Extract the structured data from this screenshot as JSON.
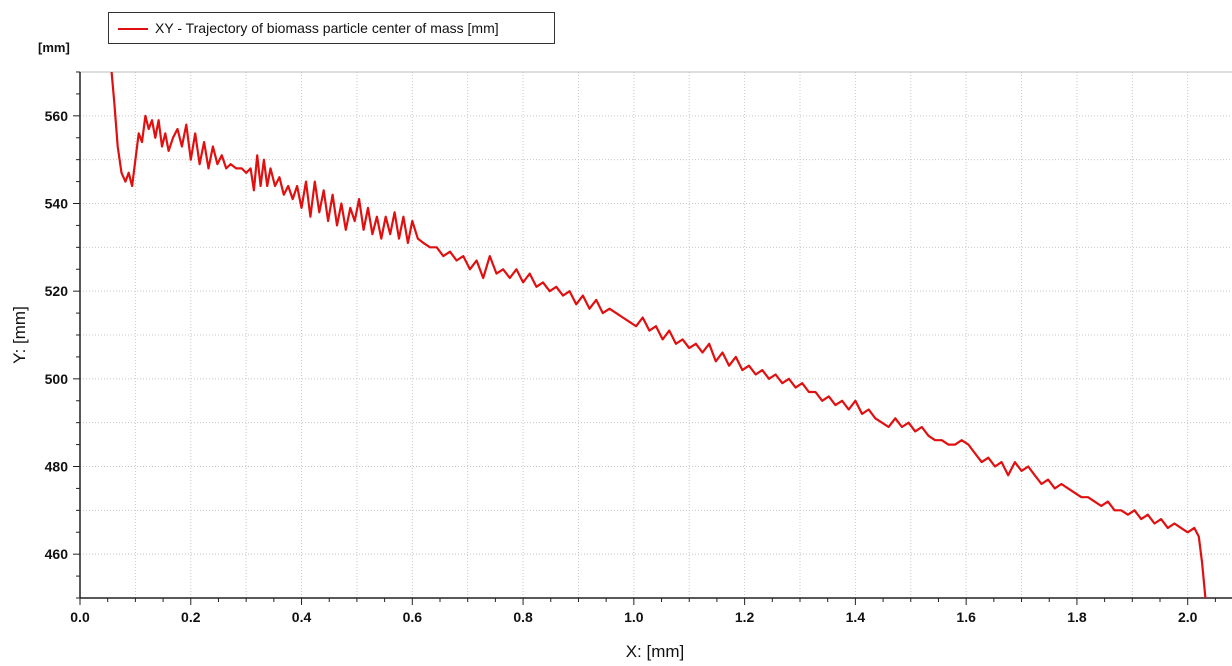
{
  "chart_data": {
    "type": "line",
    "title": "",
    "xlabel": "X: [mm]",
    "ylabel": "Y: [mm]",
    "y_unit_label": "[mm]",
    "xlim": [
      0.0,
      2.08
    ],
    "ylim": [
      450,
      570
    ],
    "x_ticks": [
      "0.0",
      "0.2",
      "0.4",
      "0.6",
      "0.8",
      "1.0",
      "1.2",
      "1.4",
      "1.6",
      "1.8",
      "2.0"
    ],
    "y_ticks": [
      "460",
      "480",
      "500",
      "520",
      "540",
      "560"
    ],
    "grid": true,
    "legend_position": "top-left",
    "series": [
      {
        "name": "XY - Trajectory of biomass particle center of mass [mm]",
        "color": "#e01010",
        "points": [
          [
            0.057,
            570
          ],
          [
            0.062,
            563
          ],
          [
            0.068,
            553
          ],
          [
            0.075,
            547
          ],
          [
            0.082,
            545
          ],
          [
            0.088,
            547
          ],
          [
            0.094,
            544
          ],
          [
            0.1,
            550
          ],
          [
            0.106,
            556
          ],
          [
            0.112,
            554
          ],
          [
            0.118,
            560
          ],
          [
            0.124,
            557
          ],
          [
            0.13,
            559
          ],
          [
            0.136,
            555
          ],
          [
            0.142,
            559
          ],
          [
            0.148,
            553
          ],
          [
            0.154,
            556
          ],
          [
            0.16,
            552
          ],
          [
            0.168,
            555
          ],
          [
            0.176,
            557
          ],
          [
            0.184,
            553
          ],
          [
            0.192,
            558
          ],
          [
            0.2,
            550
          ],
          [
            0.208,
            556
          ],
          [
            0.216,
            549
          ],
          [
            0.224,
            554
          ],
          [
            0.232,
            548
          ],
          [
            0.24,
            553
          ],
          [
            0.248,
            549
          ],
          [
            0.256,
            551
          ],
          [
            0.264,
            548
          ],
          [
            0.272,
            549
          ],
          [
            0.282,
            548
          ],
          [
            0.292,
            548
          ],
          [
            0.3,
            547
          ],
          [
            0.308,
            548
          ],
          [
            0.314,
            543
          ],
          [
            0.32,
            551
          ],
          [
            0.326,
            544
          ],
          [
            0.332,
            550
          ],
          [
            0.338,
            544
          ],
          [
            0.344,
            548
          ],
          [
            0.352,
            544
          ],
          [
            0.36,
            546
          ],
          [
            0.368,
            542
          ],
          [
            0.376,
            544
          ],
          [
            0.384,
            541
          ],
          [
            0.392,
            544
          ],
          [
            0.4,
            539
          ],
          [
            0.408,
            545
          ],
          [
            0.416,
            537
          ],
          [
            0.424,
            545
          ],
          [
            0.432,
            538
          ],
          [
            0.44,
            543
          ],
          [
            0.448,
            536
          ],
          [
            0.456,
            542
          ],
          [
            0.464,
            535
          ],
          [
            0.472,
            540
          ],
          [
            0.48,
            534
          ],
          [
            0.488,
            539
          ],
          [
            0.496,
            536
          ],
          [
            0.504,
            541
          ],
          [
            0.512,
            534
          ],
          [
            0.52,
            539
          ],
          [
            0.528,
            533
          ],
          [
            0.536,
            537
          ],
          [
            0.544,
            532
          ],
          [
            0.552,
            537
          ],
          [
            0.56,
            533
          ],
          [
            0.568,
            538
          ],
          [
            0.576,
            532
          ],
          [
            0.584,
            537
          ],
          [
            0.592,
            531
          ],
          [
            0.6,
            536
          ],
          [
            0.61,
            532
          ],
          [
            0.62,
            531
          ],
          [
            0.632,
            530
          ],
          [
            0.644,
            530
          ],
          [
            0.656,
            528
          ],
          [
            0.668,
            529
          ],
          [
            0.68,
            527
          ],
          [
            0.692,
            528
          ],
          [
            0.704,
            525
          ],
          [
            0.716,
            527
          ],
          [
            0.728,
            523
          ],
          [
            0.74,
            528
          ],
          [
            0.752,
            524
          ],
          [
            0.764,
            525
          ],
          [
            0.776,
            523
          ],
          [
            0.788,
            525
          ],
          [
            0.8,
            522
          ],
          [
            0.812,
            524
          ],
          [
            0.824,
            521
          ],
          [
            0.836,
            522
          ],
          [
            0.848,
            520
          ],
          [
            0.86,
            521
          ],
          [
            0.872,
            519
          ],
          [
            0.884,
            520
          ],
          [
            0.896,
            517
          ],
          [
            0.908,
            519
          ],
          [
            0.92,
            516
          ],
          [
            0.932,
            518
          ],
          [
            0.944,
            515
          ],
          [
            0.956,
            516
          ],
          [
            0.968,
            515
          ],
          [
            0.98,
            514
          ],
          [
            0.992,
            513
          ],
          [
            1.004,
            512
          ],
          [
            1.016,
            514
          ],
          [
            1.028,
            511
          ],
          [
            1.04,
            512
          ],
          [
            1.052,
            509
          ],
          [
            1.064,
            511
          ],
          [
            1.076,
            508
          ],
          [
            1.088,
            509
          ],
          [
            1.1,
            507
          ],
          [
            1.112,
            508
          ],
          [
            1.124,
            506
          ],
          [
            1.136,
            508
          ],
          [
            1.148,
            504
          ],
          [
            1.16,
            506
          ],
          [
            1.172,
            503
          ],
          [
            1.184,
            505
          ],
          [
            1.196,
            502
          ],
          [
            1.208,
            503
          ],
          [
            1.22,
            501
          ],
          [
            1.232,
            502
          ],
          [
            1.244,
            500
          ],
          [
            1.256,
            501
          ],
          [
            1.268,
            499
          ],
          [
            1.28,
            500
          ],
          [
            1.292,
            498
          ],
          [
            1.304,
            499
          ],
          [
            1.316,
            497
          ],
          [
            1.328,
            497
          ],
          [
            1.34,
            495
          ],
          [
            1.352,
            496
          ],
          [
            1.364,
            494
          ],
          [
            1.376,
            495
          ],
          [
            1.388,
            493
          ],
          [
            1.4,
            495
          ],
          [
            1.412,
            492
          ],
          [
            1.424,
            493
          ],
          [
            1.436,
            491
          ],
          [
            1.448,
            490
          ],
          [
            1.46,
            489
          ],
          [
            1.472,
            491
          ],
          [
            1.484,
            489
          ],
          [
            1.496,
            490
          ],
          [
            1.508,
            488
          ],
          [
            1.52,
            489
          ],
          [
            1.532,
            487
          ],
          [
            1.544,
            486
          ],
          [
            1.556,
            486
          ],
          [
            1.568,
            485
          ],
          [
            1.58,
            485
          ],
          [
            1.592,
            486
          ],
          [
            1.604,
            485
          ],
          [
            1.616,
            483
          ],
          [
            1.628,
            481
          ],
          [
            1.64,
            482
          ],
          [
            1.652,
            480
          ],
          [
            1.664,
            481
          ],
          [
            1.676,
            478
          ],
          [
            1.688,
            481
          ],
          [
            1.7,
            479
          ],
          [
            1.712,
            480
          ],
          [
            1.724,
            478
          ],
          [
            1.736,
            476
          ],
          [
            1.748,
            477
          ],
          [
            1.76,
            475
          ],
          [
            1.772,
            476
          ],
          [
            1.784,
            475
          ],
          [
            1.796,
            474
          ],
          [
            1.808,
            473
          ],
          [
            1.82,
            473
          ],
          [
            1.832,
            472
          ],
          [
            1.844,
            471
          ],
          [
            1.856,
            472
          ],
          [
            1.868,
            470
          ],
          [
            1.88,
            470
          ],
          [
            1.892,
            469
          ],
          [
            1.904,
            470
          ],
          [
            1.916,
            468
          ],
          [
            1.928,
            469
          ],
          [
            1.94,
            467
          ],
          [
            1.952,
            468
          ],
          [
            1.964,
            466
          ],
          [
            1.976,
            467
          ],
          [
            1.988,
            466
          ],
          [
            2.0,
            465
          ],
          [
            2.012,
            466
          ],
          [
            2.02,
            464
          ],
          [
            2.026,
            458
          ],
          [
            2.032,
            450
          ]
        ]
      }
    ]
  },
  "colors": {
    "series_line": "#e01010",
    "axis": "#222222",
    "grid": "#c8c8c8",
    "background": "#ffffff"
  }
}
